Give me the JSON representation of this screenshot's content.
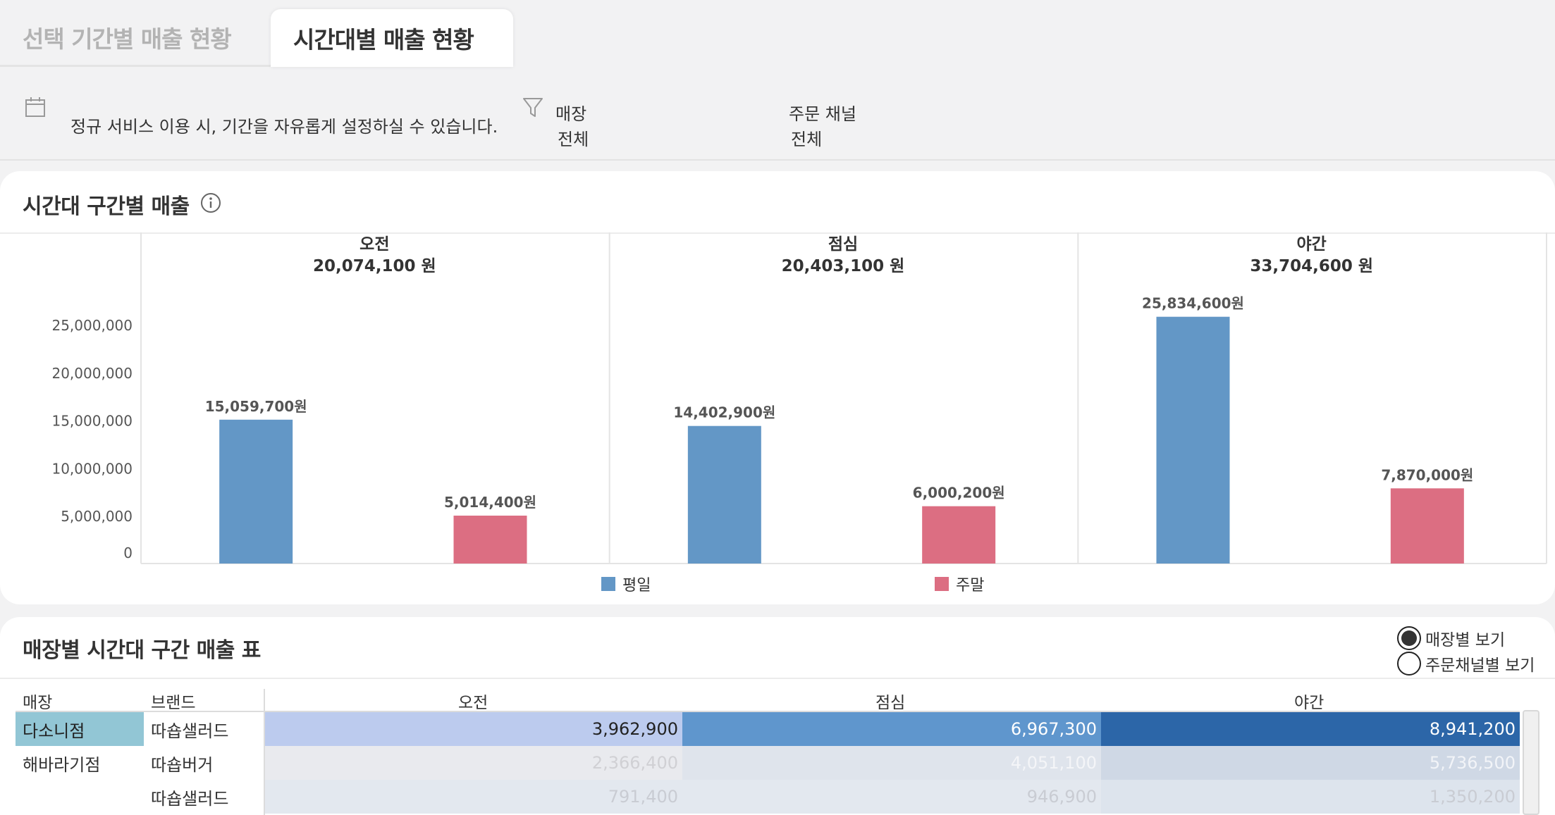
{
  "tabs": [
    {
      "label": "선택 기간별 매출 현황",
      "active": false
    },
    {
      "label": "시간대별 매출 현황",
      "active": true
    }
  ],
  "filters": {
    "period_text": "정규 서비스 이용 시, 기간을 자유롭게 설정하실 수 있습니다.",
    "store_label": "매장",
    "store_value": "전체",
    "channel_label": "주문 채널",
    "channel_value": "전체"
  },
  "chart_section": {
    "title": "시간대 구간별 매출"
  },
  "chart_data": {
    "type": "bar",
    "categories": [
      "오전",
      "점심",
      "야간"
    ],
    "category_totals": [
      "20,074,100 원",
      "20,403,100 원",
      "33,704,600 원"
    ],
    "series": [
      {
        "name": "평일",
        "color": "#6397c6",
        "values": [
          15059700,
          14402900,
          25834600
        ],
        "labels": [
          "15,059,700원",
          "14,402,900원",
          "25,834,600원"
        ]
      },
      {
        "name": "주말",
        "color": "#dc6e82",
        "values": [
          5014400,
          6000200,
          7870000
        ],
        "labels": [
          "5,014,400원",
          "6,000,200원",
          "7,870,000원"
        ]
      }
    ],
    "y_ticks": [
      {
        "value": 0,
        "label": "0"
      },
      {
        "value": 5000000,
        "label": "5,000,000"
      },
      {
        "value": 10000000,
        "label": "10,000,000"
      },
      {
        "value": 15000000,
        "label": "15,000,000"
      },
      {
        "value": 20000000,
        "label": "20,000,000"
      },
      {
        "value": 25000000,
        "label": "25,000,000"
      }
    ],
    "legend_position": "bottom"
  },
  "table_section": {
    "title": "매장별 시간대 구간 매출 표",
    "view_options": [
      {
        "label": "매장별 보기",
        "selected": true
      },
      {
        "label": "주문채널별 보기",
        "selected": false
      }
    ],
    "headers": {
      "store": "매장",
      "brand": "브랜드",
      "morning": "오전",
      "lunch": "점심",
      "night": "야간"
    },
    "rows": [
      {
        "store": "다소니점",
        "brand": "따숍샐러드",
        "morning": "3,962,900",
        "lunch": "6,967,300",
        "night": "8,941,200",
        "highlight": true
      },
      {
        "store": "해바라기점",
        "brand": "따숍버거",
        "morning": "2,366,400",
        "lunch": "4,051,100",
        "night": "5,736,500",
        "highlight": false
      },
      {
        "store": "",
        "brand": "따숍샐러드",
        "morning": "791,400",
        "lunch": "946,900",
        "night": "1,350,200",
        "highlight": false
      }
    ]
  }
}
